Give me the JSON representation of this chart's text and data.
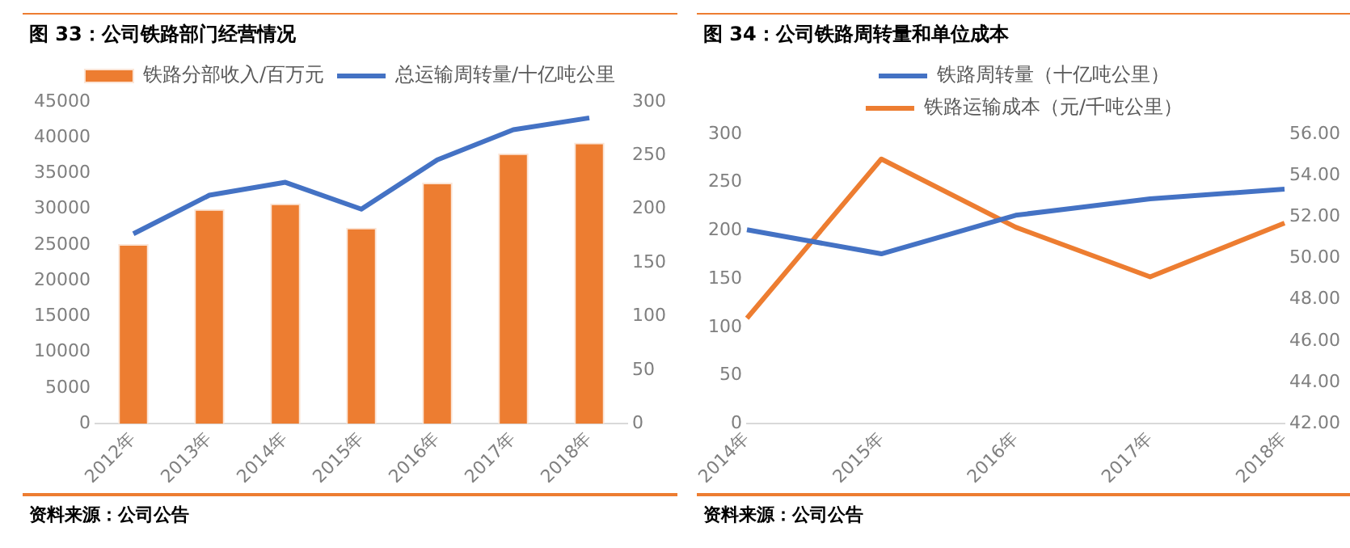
{
  "chart_data": [
    {
      "type": "bar",
      "title": "图 33：公司铁路部门经营情况",
      "categories": [
        "2012年",
        "2013年",
        "2014年",
        "2015年",
        "2016年",
        "2017年",
        "2018年"
      ],
      "series": [
        {
          "name": "铁路分部收入/百万元",
          "type": "bar",
          "color": "#ed7d31",
          "values": [
            25100,
            30000,
            30800,
            27400,
            33700,
            37800,
            39300
          ]
        },
        {
          "name": "总运输周转量/十亿吨公里",
          "type": "line",
          "axis": "y2",
          "color": "#4472c4",
          "values": [
            177,
            213,
            225,
            200,
            246,
            274,
            285
          ]
        }
      ],
      "ylim": [
        0,
        45000
      ],
      "yticks": [
        0,
        5000,
        10000,
        15000,
        20000,
        25000,
        30000,
        35000,
        40000,
        45000
      ],
      "y2lim": [
        0,
        300
      ],
      "y2ticks": [
        0,
        50,
        100,
        150,
        200,
        250,
        300
      ],
      "grid": false,
      "legend": "top",
      "annotations": [
        "资料来源：公司公告"
      ]
    },
    {
      "type": "line",
      "title": "图 34：公司铁路周转量和单位成本",
      "categories": [
        "2014年",
        "2015年",
        "2016年",
        "2017年",
        "2018年"
      ],
      "series": [
        {
          "name": "铁路周转量（十亿吨公里）",
          "color": "#4472c4",
          "values": [
            201,
            176,
            216,
            233,
            243
          ]
        },
        {
          "name": "铁路运输成本（元/千吨公里）",
          "axis": "y2",
          "color": "#ed7d31",
          "values": [
            47.1,
            54.8,
            51.5,
            49.1,
            51.7
          ]
        }
      ],
      "ylim": [
        0,
        300
      ],
      "yticks": [
        0,
        50,
        100,
        150,
        200,
        250,
        300
      ],
      "y2lim": [
        42,
        56
      ],
      "y2ticks": [
        {
          "value": 42,
          "label": "42.00"
        },
        {
          "value": 44,
          "label": "44.00"
        },
        {
          "value": 46,
          "label": "46.00"
        },
        {
          "value": 48,
          "label": "48.00"
        },
        {
          "value": 50,
          "label": "50.00"
        },
        {
          "value": 52,
          "label": "52.00"
        },
        {
          "value": 54,
          "label": "54.00"
        },
        {
          "value": 56,
          "label": "56.00"
        }
      ],
      "grid": false,
      "legend": "top",
      "annotations": [
        "资料来源：公司公告"
      ]
    }
  ]
}
